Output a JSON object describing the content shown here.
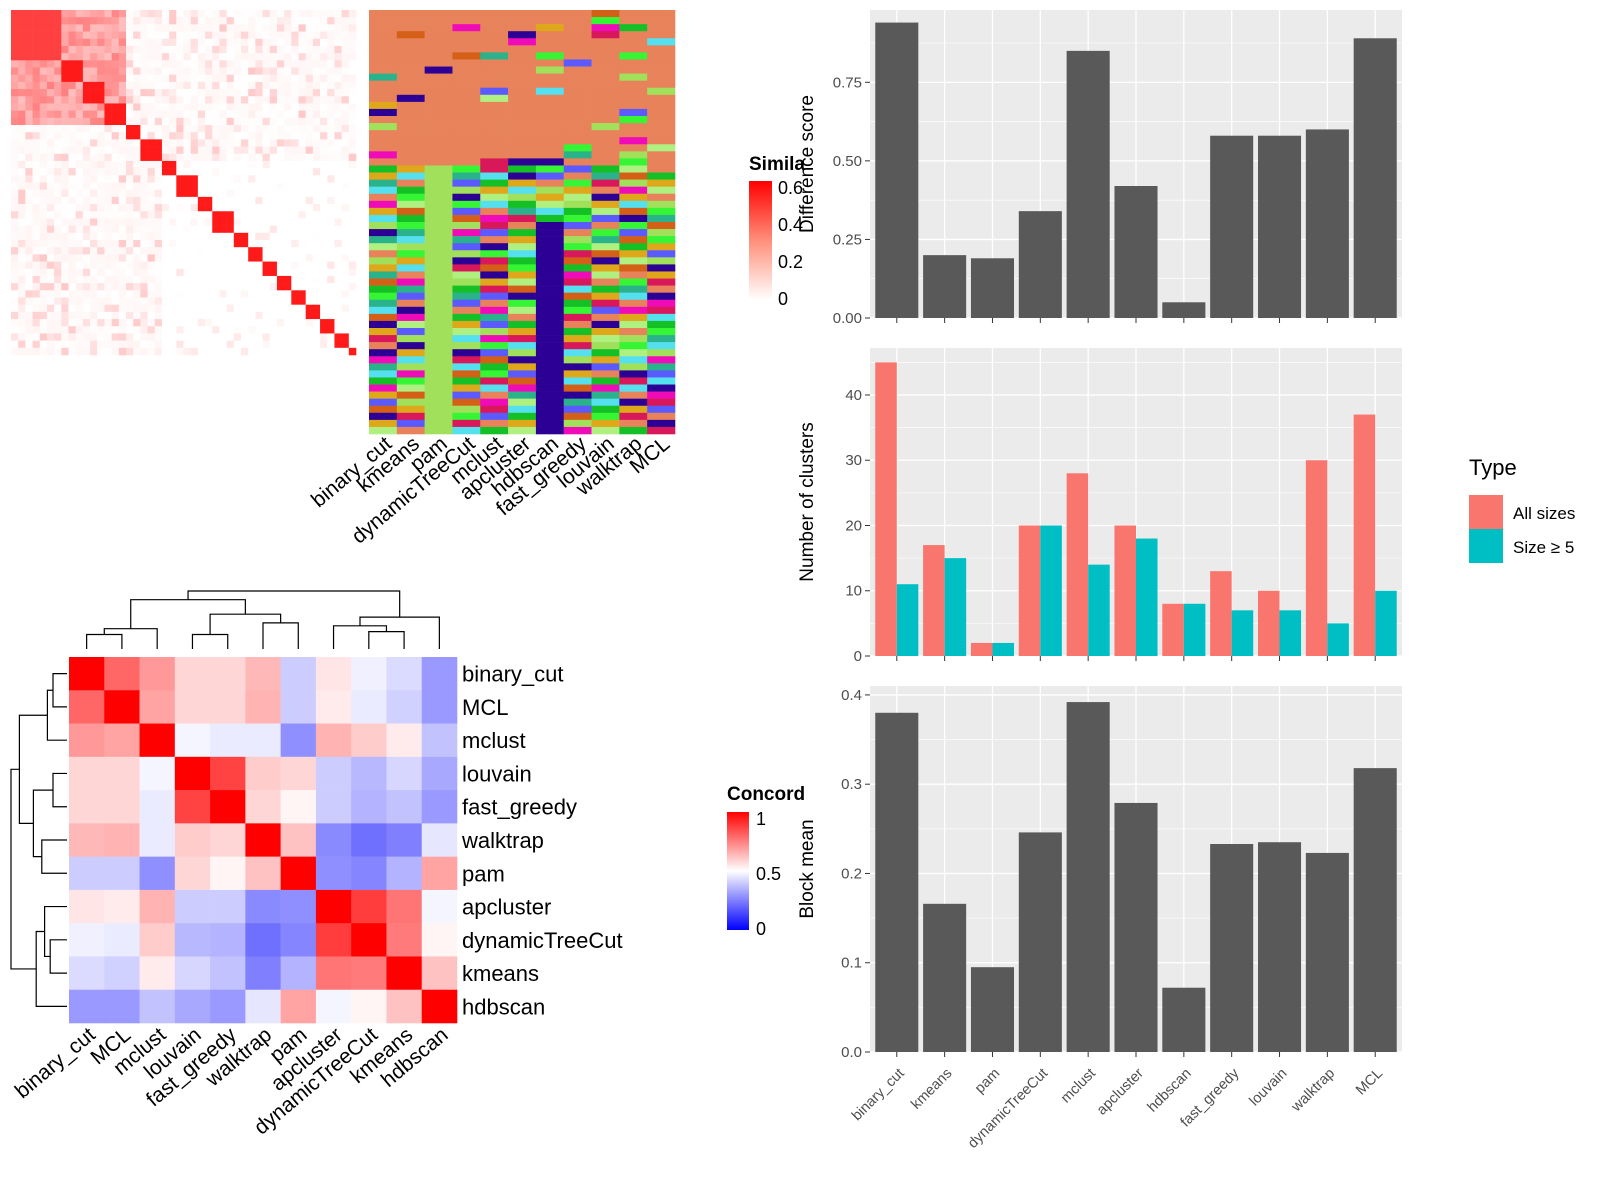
{
  "colors": {
    "bar_gray": "#595959",
    "panel_bg": "#ebebeb",
    "grid": "#ffffff",
    "all_sizes": "#f8766d",
    "size_ge5": "#00bfc4",
    "sim_high": "#ff0000",
    "sim_low": "#ffffff",
    "conc_high": "#ff0000",
    "conc_mid": "#ffffff",
    "conc_low": "#0000ff"
  },
  "similarity_heatmap": {
    "legend_title": "Simila",
    "legend_ticks": [
      "0.6",
      "0.4",
      "0.2",
      "0"
    ]
  },
  "membership_heatmap": {
    "methods": [
      "binary_cut",
      "kmeans",
      "pam",
      "dynamicTreeCut",
      "mclust",
      "apcluster",
      "hdbscan",
      "fast_greedy",
      "louvain",
      "walktrap",
      "MCL"
    ]
  },
  "concordance_heatmap": {
    "legend_title": "Concord",
    "legend_ticks": [
      "1",
      "0.5",
      "0"
    ],
    "row_labels": [
      "binary_cut",
      "MCL",
      "mclust",
      "louvain",
      "fast_greedy",
      "walktrap",
      "pam",
      "apcluster",
      "dynamicTreeCut",
      "kmeans",
      "hdbscan"
    ],
    "col_labels": [
      "binary_cut",
      "MCL",
      "mclust",
      "louvain",
      "fast_greedy",
      "walktrap",
      "pam",
      "apcluster",
      "dynamicTreeCut",
      "kmeans",
      "hdbscan"
    ]
  },
  "chart_data": [
    {
      "type": "bar",
      "categories": [
        "binary_cut",
        "kmeans",
        "pam",
        "dynamicTreeCut",
        "mclust",
        "apcluster",
        "hdbscan",
        "fast_greedy",
        "louvain",
        "walktrap",
        "MCL"
      ],
      "values": [
        0.94,
        0.2,
        0.19,
        0.34,
        0.85,
        0.42,
        0.05,
        0.58,
        0.58,
        0.6,
        0.89
      ],
      "ylabel": "Difference score",
      "yticks": [
        "0.00",
        "0.25",
        "0.50",
        "0.75"
      ],
      "ylim": [
        0,
        0.98
      ]
    },
    {
      "type": "bar",
      "categories": [
        "binary_cut",
        "kmeans",
        "pam",
        "dynamicTreeCut",
        "mclust",
        "apcluster",
        "hdbscan",
        "fast_greedy",
        "louvain",
        "walktrap",
        "MCL"
      ],
      "series": [
        {
          "name": "All sizes",
          "values": [
            45,
            17,
            2,
            20,
            28,
            20,
            8,
            13,
            10,
            30,
            37
          ]
        },
        {
          "name": "Size ≥ 5",
          "values": [
            11,
            15,
            2,
            20,
            14,
            18,
            8,
            7,
            7,
            5,
            10
          ]
        }
      ],
      "ylabel": "Number of clusters",
      "yticks": [
        "0",
        "10",
        "20",
        "30",
        "40"
      ],
      "ylim": [
        0,
        47.2
      ],
      "legend_title": "Type",
      "legend_position": "right"
    },
    {
      "type": "bar",
      "categories": [
        "binary_cut",
        "kmeans",
        "pam",
        "dynamicTreeCut",
        "mclust",
        "apcluster",
        "hdbscan",
        "fast_greedy",
        "louvain",
        "walktrap",
        "MCL"
      ],
      "values": [
        0.38,
        0.166,
        0.095,
        0.246,
        0.392,
        0.279,
        0.072,
        0.233,
        0.235,
        0.223,
        0.318
      ],
      "ylabel": "Block mean",
      "yticks": [
        "0.0",
        "0.1",
        "0.2",
        "0.3",
        "0.4"
      ],
      "ylim": [
        0,
        0.41
      ]
    },
    {
      "type": "heatmap",
      "rows": [
        "binary_cut",
        "MCL",
        "mclust",
        "louvain",
        "fast_greedy",
        "walktrap",
        "pam",
        "apcluster",
        "dynamicTreeCut",
        "kmeans",
        "hdbscan"
      ],
      "cols": [
        "binary_cut",
        "MCL",
        "mclust",
        "louvain",
        "fast_greedy",
        "walktrap",
        "pam",
        "apcluster",
        "dynamicTreeCut",
        "kmeans",
        "hdbscan"
      ],
      "values": [
        [
          1.0,
          0.8,
          0.7,
          0.58,
          0.58,
          0.64,
          0.4,
          0.55,
          0.47,
          0.43,
          0.3
        ],
        [
          0.8,
          1.0,
          0.68,
          0.58,
          0.58,
          0.65,
          0.4,
          0.54,
          0.46,
          0.41,
          0.3
        ],
        [
          0.7,
          0.68,
          1.0,
          0.48,
          0.46,
          0.46,
          0.28,
          0.65,
          0.6,
          0.54,
          0.38
        ],
        [
          0.58,
          0.58,
          0.48,
          1.0,
          0.87,
          0.6,
          0.58,
          0.4,
          0.36,
          0.42,
          0.33
        ],
        [
          0.58,
          0.58,
          0.46,
          0.87,
          1.0,
          0.58,
          0.52,
          0.4,
          0.35,
          0.38,
          0.3
        ],
        [
          0.64,
          0.65,
          0.46,
          0.6,
          0.58,
          1.0,
          0.62,
          0.27,
          0.22,
          0.25,
          0.45
        ],
        [
          0.4,
          0.4,
          0.28,
          0.58,
          0.52,
          0.62,
          1.0,
          0.28,
          0.26,
          0.35,
          0.68
        ],
        [
          0.55,
          0.54,
          0.65,
          0.4,
          0.4,
          0.27,
          0.28,
          1.0,
          0.88,
          0.77,
          0.48
        ],
        [
          0.47,
          0.46,
          0.6,
          0.36,
          0.35,
          0.22,
          0.26,
          0.88,
          1.0,
          0.76,
          0.52
        ],
        [
          0.43,
          0.41,
          0.54,
          0.42,
          0.38,
          0.25,
          0.35,
          0.77,
          0.76,
          1.0,
          0.62
        ],
        [
          0.3,
          0.3,
          0.38,
          0.33,
          0.3,
          0.45,
          0.68,
          0.48,
          0.52,
          0.62,
          1.0
        ]
      ]
    }
  ]
}
